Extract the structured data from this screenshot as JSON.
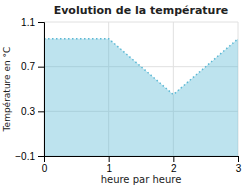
{
  "chart_data": {
    "type": "area",
    "title": "Evolution de la température",
    "xlabel": "heure par heure",
    "ylabel": "Température en °C",
    "x": [
      0,
      1,
      2,
      3
    ],
    "values": [
      0.95,
      0.95,
      0.45,
      0.95
    ],
    "color": "#5bb8d4",
    "line_style": "dotted",
    "xlim": [
      0,
      3
    ],
    "ylim": [
      -0.1,
      1.1
    ],
    "xticks": [
      0,
      1,
      2,
      3
    ],
    "yticks": [
      {
        "value": -0.1,
        "label": "−0.1"
      },
      0.3,
      0.7,
      1.1
    ],
    "grid": true
  }
}
